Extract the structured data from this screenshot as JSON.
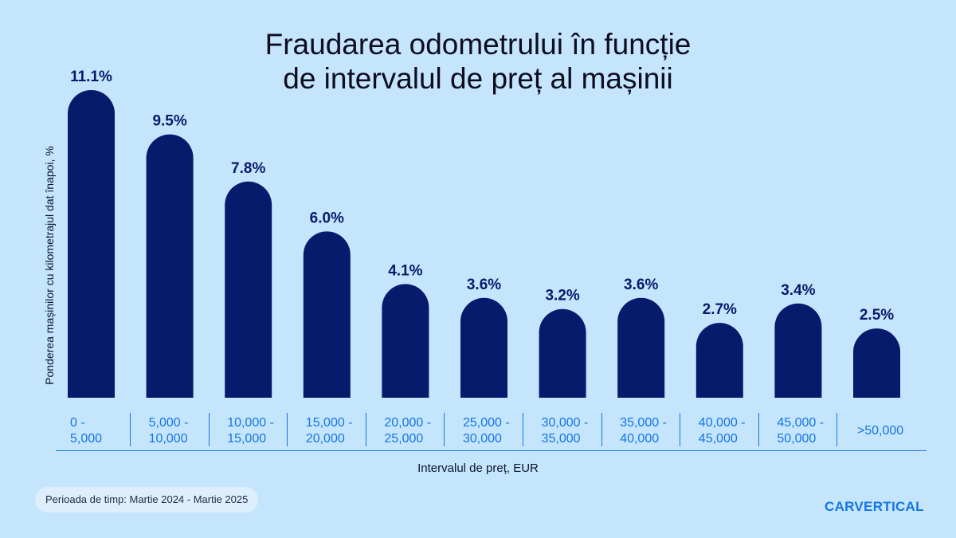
{
  "chart_data": {
    "type": "bar",
    "title_line1": "Fraudarea odometrului în funcție",
    "title_line2": "de intervalul de preț al mașinii",
    "ylabel": "Ponderea mașinilor cu kilometrajul dat înapoi, %",
    "xlabel": "Intervalul de preț, EUR",
    "categories": [
      [
        "0 -",
        "5,000"
      ],
      [
        "5,000 -",
        "10,000"
      ],
      [
        "10,000 -",
        "15,000"
      ],
      [
        "15,000 -",
        "20,000"
      ],
      [
        "20,000 -",
        "25,000"
      ],
      [
        "25,000 -",
        "30,000"
      ],
      [
        "30,000 -",
        "35,000"
      ],
      [
        "35,000 -",
        "40,000"
      ],
      [
        "40,000 -",
        "45,000"
      ],
      [
        "45,000 -",
        "50,000"
      ],
      [
        ">50,000"
      ]
    ],
    "values": [
      11.1,
      9.5,
      7.8,
      6.0,
      4.1,
      3.6,
      3.2,
      3.6,
      2.7,
      3.4,
      2.5
    ],
    "value_labels": [
      "11.1%",
      "9.5%",
      "7.8%",
      "6.0%",
      "4.1%",
      "3.6%",
      "3.2%",
      "3.6%",
      "2.7%",
      "3.4%",
      "2.5%"
    ],
    "ylim": [
      0,
      11.1
    ],
    "grid": false,
    "legend": "none"
  },
  "footer": {
    "period": "Perioada de timp: Martie 2024 - Martie 2025",
    "logo": "CARVERTICAL"
  },
  "colors": {
    "background": "#c5e5fd",
    "bar": "#071a6b",
    "value_label": "#071a6b",
    "accent": "#1475e3"
  }
}
